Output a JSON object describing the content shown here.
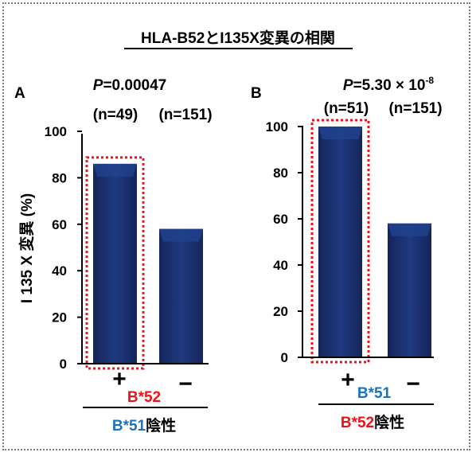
{
  "title": "HLA-B52とI135X変異の相関",
  "colors": {
    "bar": "#1b2f6e",
    "bar_top": "#22428f",
    "highlight": "#e8141a",
    "blue_text": "#1a72c0"
  },
  "chart_data": [
    {
      "type": "bar",
      "panel_label": "A",
      "ylabel": "I 135 X 変異 (%)",
      "ylim": [
        0,
        100
      ],
      "yticks": [
        "0",
        "20",
        "40",
        "60",
        "80",
        "100"
      ],
      "p_value_prefix": "P",
      "p_value_rest": "=0.00047",
      "counts": [
        "(n=49)",
        "(n=151)"
      ],
      "categories": [
        "+",
        "−"
      ],
      "values": [
        86,
        58
      ],
      "highlighted_index": 0,
      "sub_label": "B*52",
      "group_label_allele": "B*51",
      "group_label_suffix": "陰性"
    },
    {
      "type": "bar",
      "panel_label": "B",
      "ylim": [
        0,
        100
      ],
      "yticks": [
        "0",
        "20",
        "40",
        "60",
        "80",
        "100"
      ],
      "p_value_prefix": "P",
      "p_value_rest": "=5.30 × 10",
      "p_value_exp": "-8",
      "counts": [
        "(n=51)",
        "(n=151)"
      ],
      "categories": [
        "+",
        "−"
      ],
      "values": [
        100,
        58
      ],
      "highlighted_index": 0,
      "sub_label": "B*51",
      "group_label_allele": "B*52",
      "group_label_suffix": "陰性"
    }
  ]
}
